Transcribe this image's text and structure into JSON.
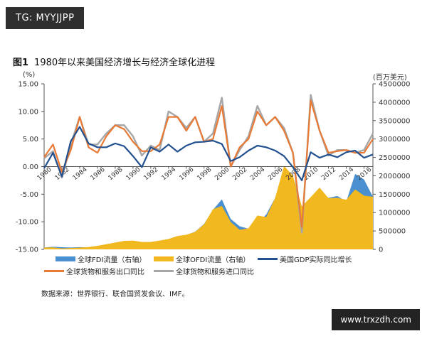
{
  "watermark_top": "TG: MYYJJPP",
  "watermark_bottom": "www.trxzdh.com",
  "figure": {
    "number": "图1",
    "title": "1980年以来美国经济增长与经济全球化进程",
    "source": "数据来源：世界银行、联合国贸发会议、IMF。",
    "left_unit": "(%)",
    "right_unit": "(百万美元)"
  },
  "legend": [
    {
      "label": "全球FDI流量（右轴）",
      "color": "#4a8fd0",
      "kind": "area"
    },
    {
      "label": "全球OFDI流量（右轴）",
      "color": "#f2b81f",
      "kind": "area"
    },
    {
      "label": "美国GDP实际同比增长",
      "color": "#23508f",
      "kind": "line"
    },
    {
      "label": "全球货物和服务出口同比",
      "color": "#e87a35",
      "kind": "line"
    },
    {
      "label": "全球货物和服务进口同比",
      "color": "#a6a6a6",
      "kind": "line"
    }
  ],
  "colors": {
    "fdi": "#4a8fd0",
    "ofdi": "#f2b81f",
    "gdp": "#23508f",
    "export": "#e87a35",
    "import": "#a6a6a6",
    "axis": "#555555",
    "grid": "#cccccc"
  },
  "chart_data": {
    "type": "line",
    "x": [
      1980,
      1981,
      1982,
      1983,
      1984,
      1985,
      1986,
      1987,
      1988,
      1989,
      1990,
      1991,
      1992,
      1993,
      1994,
      1995,
      1996,
      1997,
      1998,
      1999,
      2000,
      2001,
      2002,
      2003,
      2004,
      2005,
      2006,
      2007,
      2008,
      2009,
      2010,
      2011,
      2012,
      2013,
      2014,
      2015,
      2016,
      2017
    ],
    "x_tick_labels": [
      "1980",
      "1982",
      "1984",
      "1986",
      "1988",
      "1990",
      "1992",
      "1994",
      "1996",
      "1998",
      "2000",
      "2002",
      "2004",
      "2006",
      "2008",
      "2010",
      "2012",
      "2014",
      "2016"
    ],
    "y_left": {
      "ticks": [
        -15,
        -10,
        -5,
        0,
        5,
        10,
        15
      ],
      "tick_labels": [
        "-15.00",
        "-10.00",
        "-5.00",
        "0.00",
        "5.00",
        "10.00",
        "15.00"
      ],
      "range": [
        -15,
        15
      ]
    },
    "y_right": {
      "ticks": [
        0,
        500000,
        1000000,
        1500000,
        2000000,
        2500000,
        3000000,
        3500000,
        4000000,
        4500000
      ],
      "tick_labels": [
        "0",
        "500000",
        "1000000",
        "1500000",
        "2000000",
        "2500000",
        "3000000",
        "3500000",
        "4000000",
        "4500000"
      ],
      "range": [
        0,
        4500000
      ]
    },
    "series": [
      {
        "name": "全球FDI流量（右轴）",
        "axis": "right",
        "type": "area",
        "values": [
          50000,
          69000,
          59000,
          50000,
          60000,
          56000,
          87000,
          136000,
          164000,
          196000,
          205000,
          154000,
          166000,
          220000,
          255000,
          341000,
          389000,
          481000,
          690000,
          1075000,
          1360000,
          825000,
          627000,
          560000,
          690000,
          950000,
          1400000,
          2000000,
          1770000,
          1150000,
          1400000,
          1600000,
          1400000,
          1450000,
          1300000,
          2050000,
          1900000,
          1430000
        ]
      },
      {
        "name": "全球OFDI流量（右轴）",
        "axis": "right",
        "type": "area",
        "values": [
          50000,
          52000,
          27000,
          37000,
          49000,
          62000,
          96000,
          140000,
          186000,
          230000,
          240000,
          200000,
          200000,
          240000,
          283000,
          363000,
          396000,
          475000,
          680000,
          1090000,
          1180000,
          743000,
          530000,
          575000,
          920000,
          880000,
          1400000,
          2270000,
          2000000,
          1170000,
          1420000,
          1680000,
          1390000,
          1400000,
          1350000,
          1630000,
          1460000,
          1430000
        ]
      },
      {
        "name": "美国GDP实际同比增长",
        "axis": "left",
        "type": "line",
        "values": [
          -0.3,
          2.5,
          -1.8,
          4.6,
          7.2,
          4.2,
          3.5,
          3.5,
          4.2,
          3.7,
          1.9,
          -0.1,
          3.5,
          2.7,
          4.0,
          2.7,
          3.8,
          4.4,
          4.5,
          4.7,
          4.1,
          1.0,
          1.7,
          2.9,
          3.8,
          3.5,
          2.9,
          1.9,
          -0.1,
          -2.5,
          2.6,
          1.6,
          2.2,
          1.7,
          2.6,
          2.9,
          1.6,
          2.2
        ]
      },
      {
        "name": "全球货物和服务出口同比",
        "axis": "left",
        "type": "line",
        "values": [
          1.7,
          4.0,
          -1.0,
          3.0,
          9.0,
          3.5,
          2.5,
          5.5,
          7.5,
          6.8,
          4.5,
          2.8,
          2.8,
          4.0,
          9.0,
          9.0,
          6.5,
          9.0,
          4.5,
          5.0,
          11.0,
          0.0,
          3.5,
          5.0,
          10.0,
          7.5,
          9.0,
          6.5,
          2.5,
          -11.0,
          12.0,
          6.5,
          2.5,
          2.8,
          3.0,
          2.5,
          2.5,
          5.0
        ]
      },
      {
        "name": "全球货物和服务进口同比",
        "axis": "left",
        "type": "line",
        "values": [
          1.5,
          2.8,
          -2.0,
          4.0,
          9.0,
          4.0,
          4.0,
          6.0,
          7.5,
          7.5,
          5.5,
          2.0,
          3.8,
          3.0,
          10.0,
          9.0,
          7.0,
          9.0,
          4.5,
          6.0,
          12.5,
          0.0,
          3.0,
          5.5,
          11.0,
          7.5,
          9.0,
          7.0,
          2.5,
          -12.0,
          13.0,
          6.5,
          2.0,
          3.0,
          3.0,
          2.5,
          3.0,
          6.0
        ]
      }
    ]
  }
}
